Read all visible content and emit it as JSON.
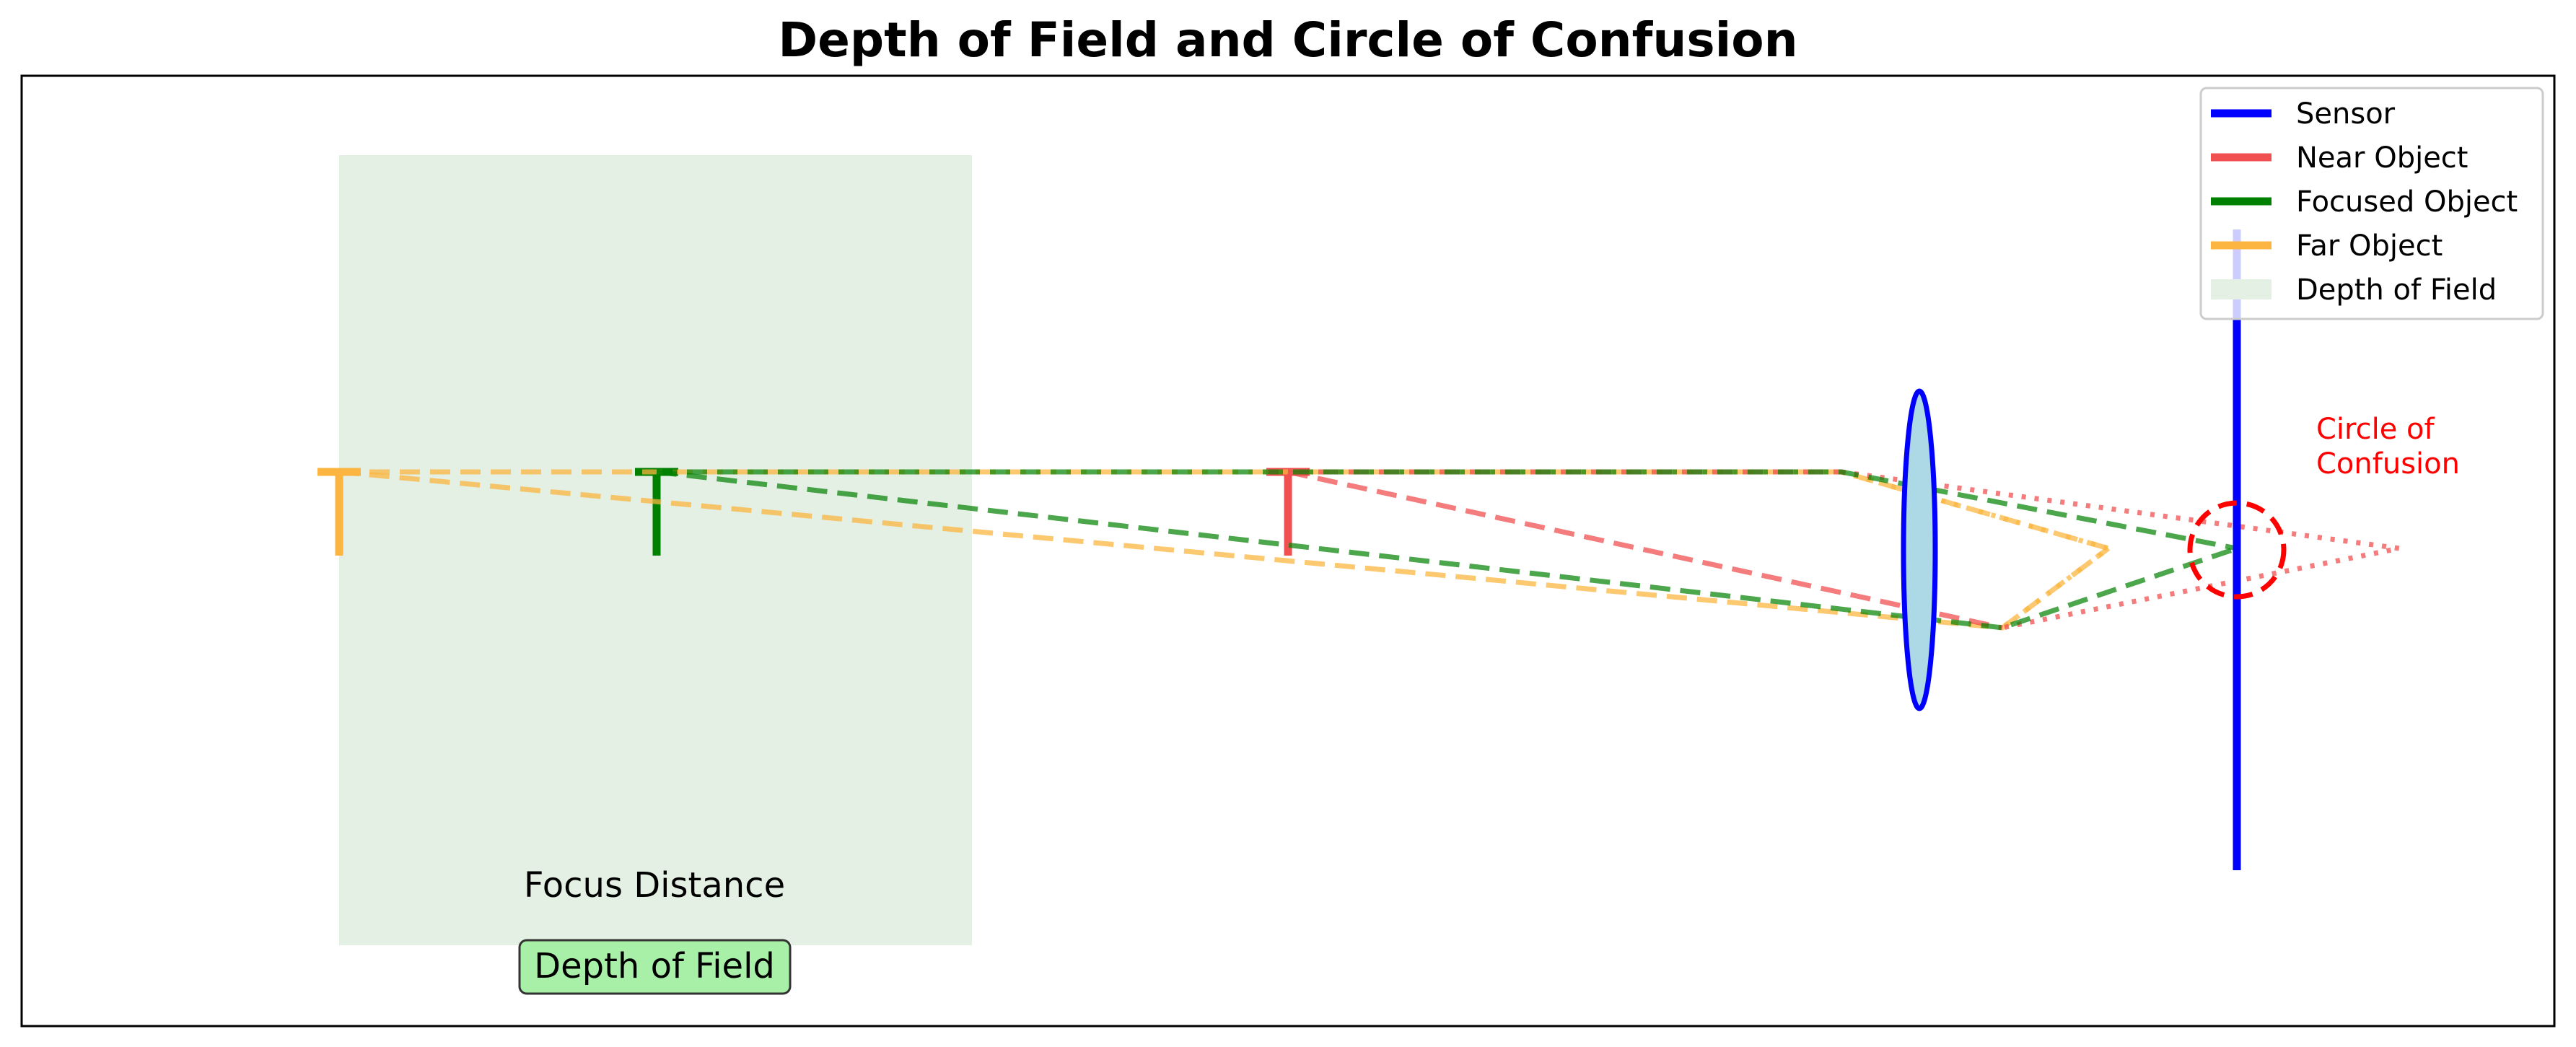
{
  "title": "Depth of Field and Circle of Confusion",
  "labels": {
    "focus_distance": "Focus Distance",
    "depth_of_field_box": "Depth of Field",
    "circle_of_confusion_line1": "Circle of",
    "circle_of_confusion_line2": "Confusion"
  },
  "legend": {
    "placement": "top-right",
    "items": [
      {
        "label": "Sensor",
        "color": "#0000ff"
      },
      {
        "label": "Near Object",
        "color": "#f05050"
      },
      {
        "label": "Focused Object",
        "color": "#008000"
      },
      {
        "label": "Far Object",
        "color": "#fbb540"
      },
      {
        "label": "Depth of Field",
        "color": "#e3f0e3"
      }
    ]
  },
  "colors": {
    "sensor": "#0000ff",
    "near": "#f05050",
    "focused": "#008000",
    "far": "#fbb540",
    "dof_region": "#e3f0e3",
    "lens_fill": "#add8e6",
    "lens_edge": "#0000ff",
    "coc": "#ff0000",
    "dof_box_fill": "#a8f0a8"
  }
}
